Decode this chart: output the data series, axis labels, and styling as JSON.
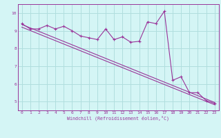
{
  "xlabel": "Windchill (Refroidissement éolien,°C)",
  "xlim": [
    -0.5,
    23.5
  ],
  "ylim": [
    4.5,
    10.5
  ],
  "yticks": [
    5,
    6,
    7,
    8,
    9,
    10
  ],
  "xticks": [
    0,
    1,
    2,
    3,
    4,
    5,
    6,
    7,
    8,
    9,
    10,
    11,
    12,
    13,
    14,
    15,
    16,
    17,
    18,
    19,
    20,
    21,
    22,
    23
  ],
  "bg_color": "#d4f5f5",
  "line_color": "#993399",
  "grid_color": "#b0dede",
  "line1_x": [
    0,
    1,
    2,
    3,
    4,
    5,
    6,
    7,
    8,
    9,
    10,
    11,
    12,
    13,
    14,
    15,
    16,
    17,
    18,
    19,
    20,
    21,
    22,
    23
  ],
  "line1_y": [
    9.4,
    9.1,
    9.1,
    9.3,
    9.1,
    9.25,
    9.0,
    8.7,
    8.6,
    8.5,
    9.1,
    8.5,
    8.65,
    8.35,
    8.4,
    9.5,
    9.4,
    10.1,
    6.2,
    6.4,
    5.5,
    5.5,
    5.05,
    4.9
  ],
  "line2_x": [
    0,
    23
  ],
  "line2_y": [
    9.35,
    4.95
  ],
  "line3_x": [
    0,
    23
  ],
  "line3_y": [
    9.2,
    4.82
  ]
}
